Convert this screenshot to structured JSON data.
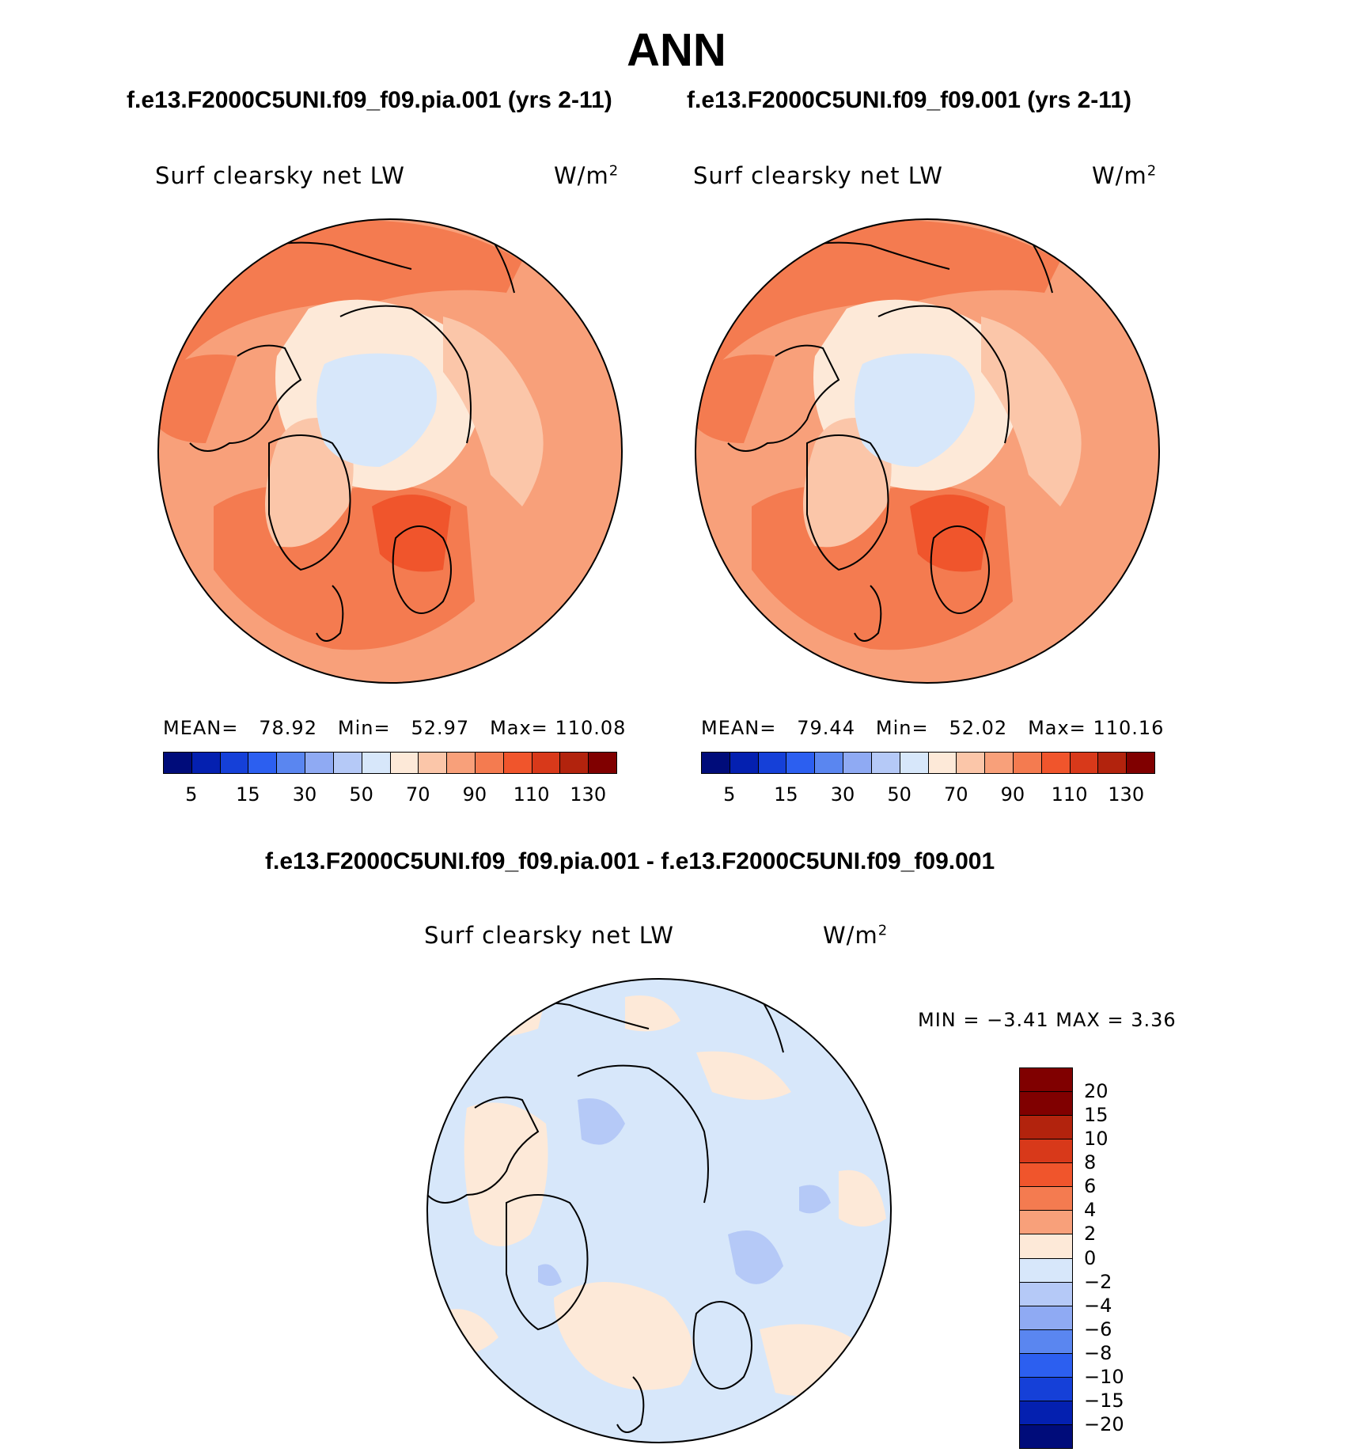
{
  "figure": {
    "title": "ANN",
    "panel_left": {
      "case_title": "f.e13.F2000C5UNI.f09_f09.pia.001 (yrs 2-11)",
      "variable": "Surf clearsky net LW",
      "units_base": "W/m",
      "units_exp": "2",
      "mean_label": "MEAN=",
      "mean_value": "78.92",
      "min_label": "Min=",
      "min_value": "52.97",
      "max_label": "Max=",
      "max_value": "110.08"
    },
    "panel_right": {
      "case_title": "f.e13.F2000C5UNI.f09_f09.001 (yrs 2-11)",
      "variable": "Surf clearsky net LW",
      "units_base": "W/m",
      "units_exp": "2",
      "mean_label": "MEAN=",
      "mean_value": "79.44",
      "min_label": "Min=",
      "min_value": "52.02",
      "max_label": "Max=",
      "max_value": "110.16"
    },
    "panel_diff": {
      "case_title": "f.e13.F2000C5UNI.f09_f09.pia.001 - f.e13.F2000C5UNI.f09_f09.001",
      "variable": "Surf clearsky net LW",
      "units_base": "W/m",
      "units_exp": "2",
      "minmax_text": "MIN =   −3.41  MAX =    3.36"
    }
  },
  "chart_data": [
    {
      "type": "heatmap",
      "projection": "north-polar-stereographic",
      "title": "f.e13.F2000C5UNI.f09_f09.pia.001 (yrs 2-11)",
      "variable": "Surf clearsky net LW",
      "units": "W/m2",
      "mean": 78.92,
      "min": 52.97,
      "max": 110.08,
      "colorbar_ticks": [
        "5",
        "15",
        "30",
        "50",
        "70",
        "90",
        "110",
        "130"
      ],
      "colorbar_levels": [
        5,
        10,
        15,
        20,
        30,
        40,
        50,
        60,
        70,
        80,
        90,
        100,
        110,
        120,
        130
      ]
    },
    {
      "type": "heatmap",
      "projection": "north-polar-stereographic",
      "title": "f.e13.F2000C5UNI.f09_f09.001 (yrs 2-11)",
      "variable": "Surf clearsky net LW",
      "units": "W/m2",
      "mean": 79.44,
      "min": 52.02,
      "max": 110.16,
      "colorbar_ticks": [
        "5",
        "15",
        "30",
        "50",
        "70",
        "90",
        "110",
        "130"
      ],
      "colorbar_levels": [
        5,
        10,
        15,
        20,
        30,
        40,
        50,
        60,
        70,
        80,
        90,
        100,
        110,
        120,
        130
      ]
    },
    {
      "type": "heatmap",
      "projection": "north-polar-stereographic",
      "title": "f.e13.F2000C5UNI.f09_f09.pia.001 - f.e13.F2000C5UNI.f09_f09.001",
      "variable": "Surf clearsky net LW",
      "units": "W/m2",
      "min": -3.41,
      "max": 3.36,
      "colorbar_ticks": [
        "20",
        "15",
        "10",
        "8",
        "6",
        "4",
        "2",
        "0",
        "−2",
        "−4",
        "−6",
        "−8",
        "−10",
        "−15",
        "−20"
      ],
      "colorbar_levels": [
        20,
        15,
        10,
        8,
        6,
        4,
        2,
        0,
        -2,
        -4,
        -6,
        -8,
        -10,
        -15,
        -20
      ]
    }
  ],
  "colors": {
    "abs_palette": [
      "#000c7a",
      "#0420b0",
      "#1540d8",
      "#2c5ff0",
      "#5a86f0",
      "#8faaf3",
      "#b5c9f7",
      "#d7e7fa",
      "#fde9d8",
      "#fbc6a9",
      "#f8a07a",
      "#f47b50",
      "#f0552c",
      "#d8391a",
      "#b2230d",
      "#800000"
    ],
    "diff_palette_top_to_bottom": [
      "#800000",
      "#b2230d",
      "#d8391a",
      "#f0552c",
      "#f47b50",
      "#f8a07a",
      "#fde9d8",
      "#d7e7fa",
      "#b5c9f7",
      "#8faaf3",
      "#5a86f0",
      "#2c5ff0",
      "#1540d8",
      "#0420b0",
      "#000c7a"
    ]
  }
}
